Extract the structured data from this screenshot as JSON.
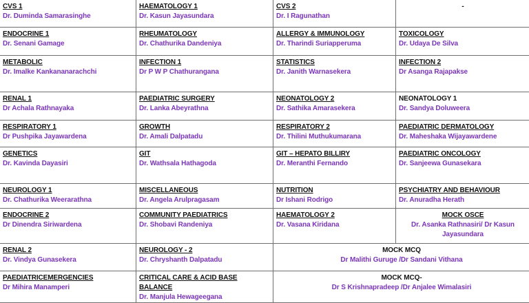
{
  "accent_color": "#7b35b8",
  "rows": [
    [
      {
        "heading": "CVS 1",
        "doctor": "Dr. Duminda Samarasinghe"
      },
      {
        "heading": "HAEMATOLOGY 1",
        "doctor": "Dr. Kasun Jayasundara"
      },
      {
        "heading": "CVS 2",
        "doctor": "Dr. I Ragunathan"
      },
      {
        "heading": "-",
        "doctor": "",
        "align": "center",
        "plain": true
      }
    ],
    [
      {
        "heading": "ENDOCRINE 1",
        "doctor": "Dr. Senani Gamage"
      },
      {
        "heading": "RHEUMATOLOGY",
        "doctor": "Dr. Chathurika Dandeniya"
      },
      {
        "heading": "ALLERGY & IMMUNOLOGY",
        "doctor": "Dr. Tharindi Suriapperuma"
      },
      {
        "heading": "TOXICOLOGY",
        "doctor": "Dr. Udaya De Silva"
      }
    ],
    [
      {
        "heading": "METABOLIC",
        "doctor": "Dr. Imalke Kankananarachchi"
      },
      {
        "heading": "INFECTION 1",
        "doctor": "Dr P W P Chathurangana"
      },
      {
        "heading": "STATISTICS",
        "doctor": "Dr. Janith Warnasekera"
      },
      {
        "heading": "INFECTION 2",
        "doctor": "Dr Asanga Rajapakse"
      }
    ],
    [
      {
        "heading": "RENAL 1",
        "doctor": "Dr Achala Rathnayaka"
      },
      {
        "heading": "PAEDIATRIC SURGERY",
        "doctor": "Dr. Lanka Abeyrathna"
      },
      {
        "heading": "NEONATOLOGY 2",
        "doctor": "Dr. Sathika Amarasekera"
      },
      {
        "heading": "NEONATOLOGY 1",
        "doctor": "Dr. Sandya Doluweera",
        "plain": true
      }
    ],
    [
      {
        "heading": "RESPIRATORY 1",
        "doctor": "Dr Pushpika Jayawardena"
      },
      {
        "heading": "GROWTH",
        "doctor": "Dr. Amali Dalpatadu"
      },
      {
        "heading": "RESPIRATORY 2",
        "doctor": "Dr. Thilini Muthukumarana"
      },
      {
        "heading": "PAEDIATRIC DERMATOLOGY",
        "doctor": "Dr. Maheshaka Wijayawardene"
      }
    ],
    [
      {
        "heading": "GENETICS",
        "doctor": "Dr. Kavinda Dayasiri"
      },
      {
        "heading": "GIT",
        "doctor": "Dr. Wathsala Hathagoda"
      },
      {
        "heading": "GIT – HEPATO BILLIRY",
        "doctor": "Dr. Meranthi Fernando"
      },
      {
        "heading": "PAEDIATRIC ONCOLOGY",
        "doctor": "Dr. Sanjeewa Gunasekara"
      }
    ],
    [
      {
        "heading": "NEUROLOGY 1",
        "doctor": "Dr. Chathurika Weerarathna"
      },
      {
        "heading": "MISCELLANEOUS",
        "doctor": "Dr. Angela Arulpragasam"
      },
      {
        "heading": "NUTRITION",
        "doctor": "Dr Ishani Rodrigo"
      },
      {
        "heading": "PSYCHIATRY AND BEHAVIOUR",
        "doctor": "Dr. Anuradha Herath"
      }
    ],
    [
      {
        "heading": "ENDOCRINE 2",
        "doctor": "Dr Dinendra Siriwardena"
      },
      {
        "heading": "COMMUNITY PAEDIATRICS",
        "doctor": "Dr. Shobavi Randeniya"
      },
      {
        "heading": "HAEMATOLOGY 2",
        "doctor": "Dr. Vasana Kiridana"
      },
      {
        "heading": "MOCK OSCE",
        "doctor": "Dr. Asanka Rathnasiri/ Dr Kasun Jayasundara",
        "align": "center"
      }
    ],
    [
      {
        "heading": "RENAL 2",
        "doctor": "Dr. Vindya Gunasekera"
      },
      {
        "heading": "NEUROLOGY - 2",
        "doctor": "Dr. Chryshanth Dalpatadu"
      },
      {
        "heading": "MOCK MCQ",
        "doctor": "Dr Malithi Guruge /Dr Sandani Vithana",
        "colspan": 2,
        "align": "center",
        "plain": true
      }
    ],
    [
      {
        "heading": "PAEDIATRICEMERGENCIES",
        "doctor": "Dr Mihira Manamperi"
      },
      {
        "heading": "CRITICAL CARE & ACID BASE  BALANCE",
        "doctor": "Dr. Manjula Hewageegana"
      },
      {
        "heading": "MOCK MCQ-",
        "doctor": "Dr S Krishnapradeep  /Dr Anjalee Wimalasiri",
        "colspan": 2,
        "align": "center",
        "plain": true
      }
    ]
  ]
}
